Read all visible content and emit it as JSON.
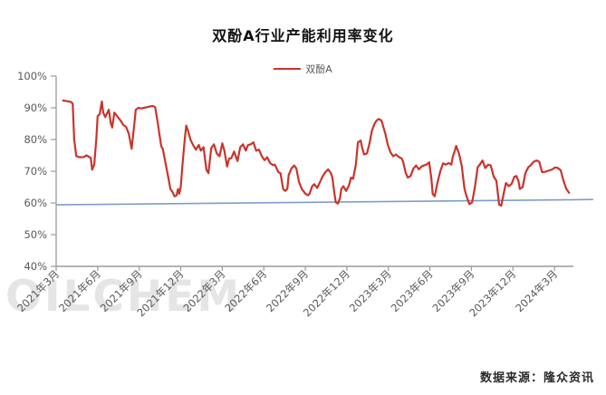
{
  "header": {
    "title": "双酚A行业产能利用率变化"
  },
  "legend": {
    "items": [
      {
        "label": "双酚A",
        "color": "#c9342c"
      }
    ]
  },
  "footer": {
    "source": "数据来源：隆众资讯"
  },
  "watermark": {
    "text": "OILCHEM"
  },
  "chart_data": {
    "type": "line",
    "title": "双酚A行业产能利用率变化",
    "legend_position": "top-center",
    "grid": false,
    "y_axis": {
      "min": 40,
      "max": 100,
      "tick_step": 10,
      "format": "percent",
      "tick_labels": [
        "100%",
        "90%",
        "80%",
        "70%",
        "60%",
        "50%",
        "40%"
      ]
    },
    "x_axis": {
      "unit": "months since 2021-03",
      "range_months": [
        0,
        37.3
      ],
      "tick_interval_months": 3,
      "tick_labels": [
        "2021年3月",
        "2021年6月",
        "2021年9月",
        "2021年12月",
        "2022年3月",
        "2022年6月",
        "2022年9月",
        "2022年12月",
        "2023年3月",
        "2023年6月",
        "2023年9月",
        "2023年12月",
        "2024年3月"
      ]
    },
    "series": [
      {
        "name": "双酚A",
        "color": "#c9342c",
        "width": 2.2,
        "points": [
          [
            0.5,
            92.3
          ],
          [
            0.8,
            92.1
          ],
          [
            1.1,
            91.8
          ],
          [
            1.2,
            91.2
          ],
          [
            1.3,
            80.0
          ],
          [
            1.45,
            74.8
          ],
          [
            1.7,
            74.4
          ],
          [
            2.0,
            74.5
          ],
          [
            2.2,
            75.0
          ],
          [
            2.5,
            74.2
          ],
          [
            2.6,
            70.5
          ],
          [
            2.75,
            72.0
          ],
          [
            2.9,
            80.0
          ],
          [
            3.0,
            87.4
          ],
          [
            3.15,
            88.0
          ],
          [
            3.3,
            92.0
          ],
          [
            3.4,
            88.5
          ],
          [
            3.55,
            87.1
          ],
          [
            3.65,
            88.0
          ],
          [
            3.8,
            89.4
          ],
          [
            3.95,
            85.0
          ],
          [
            4.05,
            83.8
          ],
          [
            4.2,
            88.5
          ],
          [
            4.3,
            88.0
          ],
          [
            4.45,
            87.1
          ],
          [
            4.65,
            86.0
          ],
          [
            4.85,
            84.6
          ],
          [
            5.05,
            84.0
          ],
          [
            5.25,
            81.8
          ],
          [
            5.45,
            77.1
          ],
          [
            5.6,
            83.0
          ],
          [
            5.75,
            89.4
          ],
          [
            5.95,
            90.0
          ],
          [
            6.15,
            89.8
          ],
          [
            6.35,
            90.0
          ],
          [
            6.55,
            90.2
          ],
          [
            6.75,
            90.4
          ],
          [
            6.95,
            90.6
          ],
          [
            7.15,
            90.2
          ],
          [
            7.35,
            85.0
          ],
          [
            7.45,
            82.0
          ],
          [
            7.6,
            77.8
          ],
          [
            7.7,
            77.1
          ],
          [
            7.9,
            72.6
          ],
          [
            8.1,
            68.0
          ],
          [
            8.25,
            64.4
          ],
          [
            8.4,
            63.5
          ],
          [
            8.55,
            62.1
          ],
          [
            8.7,
            62.4
          ],
          [
            8.8,
            64.4
          ],
          [
            8.9,
            62.9
          ],
          [
            9.0,
            65.0
          ],
          [
            9.15,
            73.2
          ],
          [
            9.3,
            80.5
          ],
          [
            9.4,
            84.4
          ],
          [
            9.55,
            82.5
          ],
          [
            9.7,
            80.0
          ],
          [
            9.9,
            78.2
          ],
          [
            10.1,
            76.8
          ],
          [
            10.3,
            78.3
          ],
          [
            10.45,
            76.5
          ],
          [
            10.65,
            77.6
          ],
          [
            10.85,
            70.5
          ],
          [
            11.0,
            69.4
          ],
          [
            11.2,
            77.3
          ],
          [
            11.4,
            78.5
          ],
          [
            11.6,
            75.6
          ],
          [
            11.8,
            74.7
          ],
          [
            12.0,
            78.8
          ],
          [
            12.15,
            76.5
          ],
          [
            12.35,
            71.5
          ],
          [
            12.5,
            74.0
          ],
          [
            12.65,
            74.1
          ],
          [
            12.85,
            76.2
          ],
          [
            13.1,
            73.2
          ],
          [
            13.3,
            77.6
          ],
          [
            13.5,
            78.5
          ],
          [
            13.7,
            76.5
          ],
          [
            13.85,
            78.2
          ],
          [
            14.05,
            78.5
          ],
          [
            14.25,
            79.1
          ],
          [
            14.45,
            76.5
          ],
          [
            14.65,
            76.8
          ],
          [
            14.85,
            74.8
          ],
          [
            15.05,
            73.5
          ],
          [
            15.25,
            74.4
          ],
          [
            15.45,
            72.6
          ],
          [
            15.65,
            71.9
          ],
          [
            15.8,
            72.1
          ],
          [
            16.05,
            69.7
          ],
          [
            16.2,
            69.4
          ],
          [
            16.4,
            64.4
          ],
          [
            16.55,
            63.8
          ],
          [
            16.7,
            64.4
          ],
          [
            16.8,
            68.8
          ],
          [
            17.0,
            70.9
          ],
          [
            17.2,
            71.8
          ],
          [
            17.35,
            70.9
          ],
          [
            17.55,
            66.5
          ],
          [
            17.75,
            64.4
          ],
          [
            18.0,
            62.9
          ],
          [
            18.2,
            62.4
          ],
          [
            18.3,
            62.9
          ],
          [
            18.5,
            65.3
          ],
          [
            18.65,
            65.9
          ],
          [
            18.85,
            64.7
          ],
          [
            19.05,
            66.5
          ],
          [
            19.25,
            68.4
          ],
          [
            19.45,
            69.7
          ],
          [
            19.65,
            70.6
          ],
          [
            19.85,
            69.4
          ],
          [
            19.95,
            68.0
          ],
          [
            20.1,
            63.0
          ],
          [
            20.2,
            60.2
          ],
          [
            20.35,
            59.8
          ],
          [
            20.5,
            61.5
          ],
          [
            20.6,
            64.4
          ],
          [
            20.75,
            65.3
          ],
          [
            20.95,
            63.8
          ],
          [
            21.15,
            65.5
          ],
          [
            21.3,
            68.0
          ],
          [
            21.45,
            67.6
          ],
          [
            21.65,
            72.0
          ],
          [
            21.8,
            79.1
          ],
          [
            22.0,
            79.7
          ],
          [
            22.1,
            77.5
          ],
          [
            22.25,
            75.3
          ],
          [
            22.45,
            75.6
          ],
          [
            22.65,
            79.0
          ],
          [
            22.8,
            82.6
          ],
          [
            23.0,
            85.0
          ],
          [
            23.15,
            86.0
          ],
          [
            23.3,
            86.5
          ],
          [
            23.5,
            86.0
          ],
          [
            23.7,
            83.0
          ],
          [
            23.8,
            81.5
          ],
          [
            23.95,
            78.5
          ],
          [
            24.15,
            76.0
          ],
          [
            24.35,
            74.7
          ],
          [
            24.55,
            75.3
          ],
          [
            24.75,
            74.5
          ],
          [
            24.95,
            74.1
          ],
          [
            25.05,
            73.2
          ],
          [
            25.25,
            69.5
          ],
          [
            25.4,
            68.0
          ],
          [
            25.6,
            68.5
          ],
          [
            25.8,
            70.8
          ],
          [
            26.0,
            71.8
          ],
          [
            26.2,
            70.6
          ],
          [
            26.4,
            71.5
          ],
          [
            26.55,
            71.8
          ],
          [
            26.75,
            72.1
          ],
          [
            26.95,
            72.8
          ],
          [
            27.1,
            68.0
          ],
          [
            27.2,
            62.8
          ],
          [
            27.35,
            62.1
          ],
          [
            27.55,
            66.5
          ],
          [
            27.75,
            70.0
          ],
          [
            27.95,
            72.5
          ],
          [
            28.15,
            72.1
          ],
          [
            28.35,
            72.6
          ],
          [
            28.55,
            72.1
          ],
          [
            28.65,
            74.5
          ],
          [
            28.8,
            76.5
          ],
          [
            28.9,
            78.0
          ],
          [
            29.1,
            75.6
          ],
          [
            29.3,
            71.8
          ],
          [
            29.5,
            64.4
          ],
          [
            29.65,
            62.1
          ],
          [
            29.85,
            59.6
          ],
          [
            30.05,
            60.2
          ],
          [
            30.25,
            65.0
          ],
          [
            30.45,
            71.2
          ],
          [
            30.6,
            72.1
          ],
          [
            30.8,
            73.4
          ],
          [
            31.0,
            71.0
          ],
          [
            31.2,
            72.1
          ],
          [
            31.4,
            71.8
          ],
          [
            31.6,
            68.4
          ],
          [
            31.8,
            67.0
          ],
          [
            32.0,
            59.5
          ],
          [
            32.15,
            59.1
          ],
          [
            32.35,
            63.5
          ],
          [
            32.5,
            66.3
          ],
          [
            32.7,
            65.3
          ],
          [
            32.9,
            66.0
          ],
          [
            33.1,
            68.3
          ],
          [
            33.25,
            68.5
          ],
          [
            33.4,
            66.9
          ],
          [
            33.5,
            64.4
          ],
          [
            33.7,
            65.0
          ],
          [
            33.9,
            69.4
          ],
          [
            34.1,
            71.2
          ],
          [
            34.3,
            72.0
          ],
          [
            34.5,
            73.0
          ],
          [
            34.7,
            73.4
          ],
          [
            34.9,
            73.0
          ],
          [
            35.1,
            69.7
          ],
          [
            35.3,
            69.8
          ],
          [
            35.45,
            70.0
          ],
          [
            35.65,
            70.3
          ],
          [
            35.85,
            70.6
          ],
          [
            36.05,
            71.2
          ],
          [
            36.25,
            71.0
          ],
          [
            36.45,
            70.3
          ],
          [
            36.65,
            67.0
          ],
          [
            36.85,
            64.5
          ],
          [
            37.05,
            63.2
          ]
        ]
      }
    ],
    "baseline": {
      "color": "#7d9dc9",
      "width": 1.6,
      "points": [
        [
          0,
          59.4
        ],
        [
          38.8,
          61.1
        ]
      ]
    }
  }
}
